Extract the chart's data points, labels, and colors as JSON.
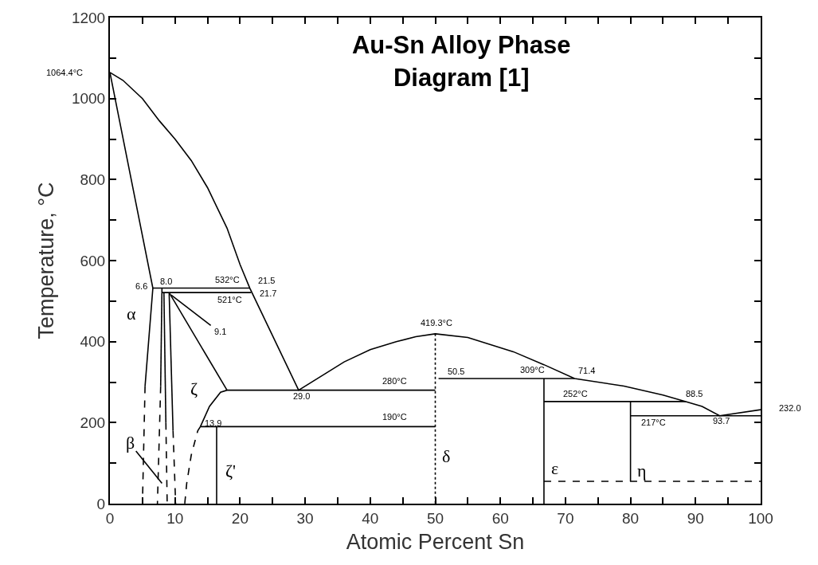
{
  "chart_data": {
    "type": "line",
    "title": "Au-Sn Alloy Phase Diagram [1]",
    "xlabel": "Atomic Percent Sn",
    "ylabel": "Temperature, °C",
    "xlim": [
      0,
      100
    ],
    "ylim": [
      0,
      1200
    ],
    "xticks": [
      0,
      {
        "value": 5,
        "label": null
      },
      10,
      {
        "value": 15,
        "label": null
      },
      20,
      {
        "value": 25,
        "label": null
      },
      30,
      {
        "value": 35,
        "label": null
      },
      40,
      {
        "value": 45,
        "label": null
      },
      50,
      {
        "value": 55,
        "label": null
      },
      60,
      {
        "value": 65,
        "label": null
      },
      70,
      {
        "value": 75,
        "label": null
      },
      80,
      {
        "value": 85,
        "label": null
      },
      90,
      {
        "value": 95,
        "label": null
      },
      100
    ],
    "yticks": [
      0,
      {
        "value": 100,
        "label": null
      },
      200,
      {
        "value": 300,
        "label": null
      },
      400,
      {
        "value": 500,
        "label": null
      },
      600,
      {
        "value": 700,
        "label": null
      },
      800,
      {
        "value": 900,
        "label": null
      },
      1000,
      {
        "value": 1100,
        "label": null
      },
      1200
    ],
    "marker": "none",
    "series": [
      {
        "color": "#000000",
        "line_style": "solid",
        "x": [
          0,
          2,
          5,
          7.6,
          10,
          12.5,
          15,
          18,
          20,
          21.5,
          29,
          33,
          36,
          40,
          44,
          47,
          50,
          55,
          58.6,
          62,
          66.7,
          71.4,
          79,
          85,
          88.5,
          91,
          93.7,
          100
        ],
        "values": [
          1064.4,
          1045,
          1000,
          945,
          900,
          847,
          780,
          680,
          590,
          532,
          280,
          320,
          350,
          380,
          400,
          412,
          419.3,
          410,
          392,
          375,
          343,
          309,
          290,
          268,
          252,
          240,
          217,
          232
        ]
      },
      {
        "color": "#000000",
        "line_style": "solid",
        "x": [
          0,
          6.6,
          5.4
        ],
        "values": [
          1064.4,
          532,
          290
        ]
      },
      {
        "color": "#000000",
        "line_style": "dashed",
        "x": [
          5.4,
          5.0
        ],
        "values": [
          290,
          0
        ]
      },
      {
        "color": "#000000",
        "line_style": "solid",
        "x": [
          6.6,
          21.5
        ],
        "values": [
          532,
          532
        ]
      },
      {
        "color": "#000000",
        "line_style": "solid",
        "x": [
          8.0,
          21.7
        ],
        "values": [
          521,
          521
        ]
      },
      {
        "color": "#000000",
        "line_style": "solid",
        "x": [
          8.0,
          7.8
        ],
        "values": [
          532,
          290
        ]
      },
      {
        "color": "#000000",
        "line_style": "dashed",
        "x": [
          7.8,
          7.3
        ],
        "values": [
          290,
          0
        ]
      },
      {
        "color": "#000000",
        "line_style": "solid",
        "x": [
          8.3,
          8.6
        ],
        "values": [
          521,
          200
        ]
      },
      {
        "color": "#000000",
        "line_style": "dashed",
        "x": [
          8.6,
          8.8
        ],
        "values": [
          200,
          0
        ]
      },
      {
        "color": "#000000",
        "line_style": "solid",
        "x": [
          9.1,
          9.7
        ],
        "values": [
          521,
          180
        ]
      },
      {
        "color": "#000000",
        "line_style": "dashed",
        "x": [
          9.7,
          10.1
        ],
        "values": [
          180,
          0
        ]
      },
      {
        "color": "#000000",
        "line_style": "solid",
        "x": [
          9.1,
          18
        ],
        "values": [
          521,
          280
        ]
      },
      {
        "color": "#000000",
        "line_style": "solid",
        "x": [
          13.9,
          15.3,
          17,
          18,
          50
        ],
        "values": [
          190,
          240,
          275,
          280,
          280
        ]
      },
      {
        "color": "#000000",
        "line_style": "dashed",
        "x": [
          13.9,
          13.5,
          12.5,
          11.8,
          11.5
        ],
        "values": [
          190,
          180,
          120,
          50,
          0
        ]
      },
      {
        "color": "#000000",
        "line_style": "solid",
        "x": [
          13.9,
          50
        ],
        "values": [
          190,
          190
        ]
      },
      {
        "color": "#000000",
        "line_style": "solid",
        "x": [
          16.4,
          16.4
        ],
        "values": [
          190,
          0
        ]
      },
      {
        "color": "#000000",
        "line_style": "dotted",
        "x": [
          50,
          50
        ],
        "values": [
          419.3,
          0
        ]
      },
      {
        "color": "#000000",
        "line_style": "solid",
        "x": [
          50.5,
          71.4
        ],
        "values": [
          309,
          309
        ]
      },
      {
        "color": "#000000",
        "line_style": "solid",
        "x": [
          66.7,
          66.7
        ],
        "values": [
          309,
          0
        ]
      },
      {
        "color": "#000000",
        "line_style": "solid",
        "x": [
          66.7,
          88.5
        ],
        "values": [
          252,
          252
        ]
      },
      {
        "color": "#000000",
        "line_style": "solid",
        "x": [
          80,
          80
        ],
        "values": [
          252,
          55
        ]
      },
      {
        "color": "#000000",
        "line_style": "solid",
        "x": [
          80,
          100
        ],
        "values": [
          217,
          217
        ]
      },
      {
        "color": "#000000",
        "line_style": "dashed",
        "x": [
          66.7,
          100
        ],
        "values": [
          55,
          55
        ]
      },
      {
        "color": "#000000",
        "line_style": "solid",
        "x": [
          15.5,
          9.4
        ],
        "values": [
          440,
          515
        ]
      },
      {
        "color": "#000000",
        "line_style": "solid",
        "x": [
          4.0,
          8.0
        ],
        "values": [
          130,
          50
        ]
      }
    ],
    "annotations": [
      "1064.4°C",
      "6.6",
      "8.0",
      "532°C",
      "21.5",
      "521°C",
      "21.7",
      "9.1",
      "α",
      "ζ",
      "β",
      "ζ'",
      "13.9",
      "29.0",
      "280°C",
      "190°C",
      "419.3°C",
      "50.5",
      "309°C",
      "71.4",
      "252°C",
      "88.5",
      "217°C",
      "93.7",
      "232.0",
      "δ",
      "ε",
      "η"
    ]
  }
}
